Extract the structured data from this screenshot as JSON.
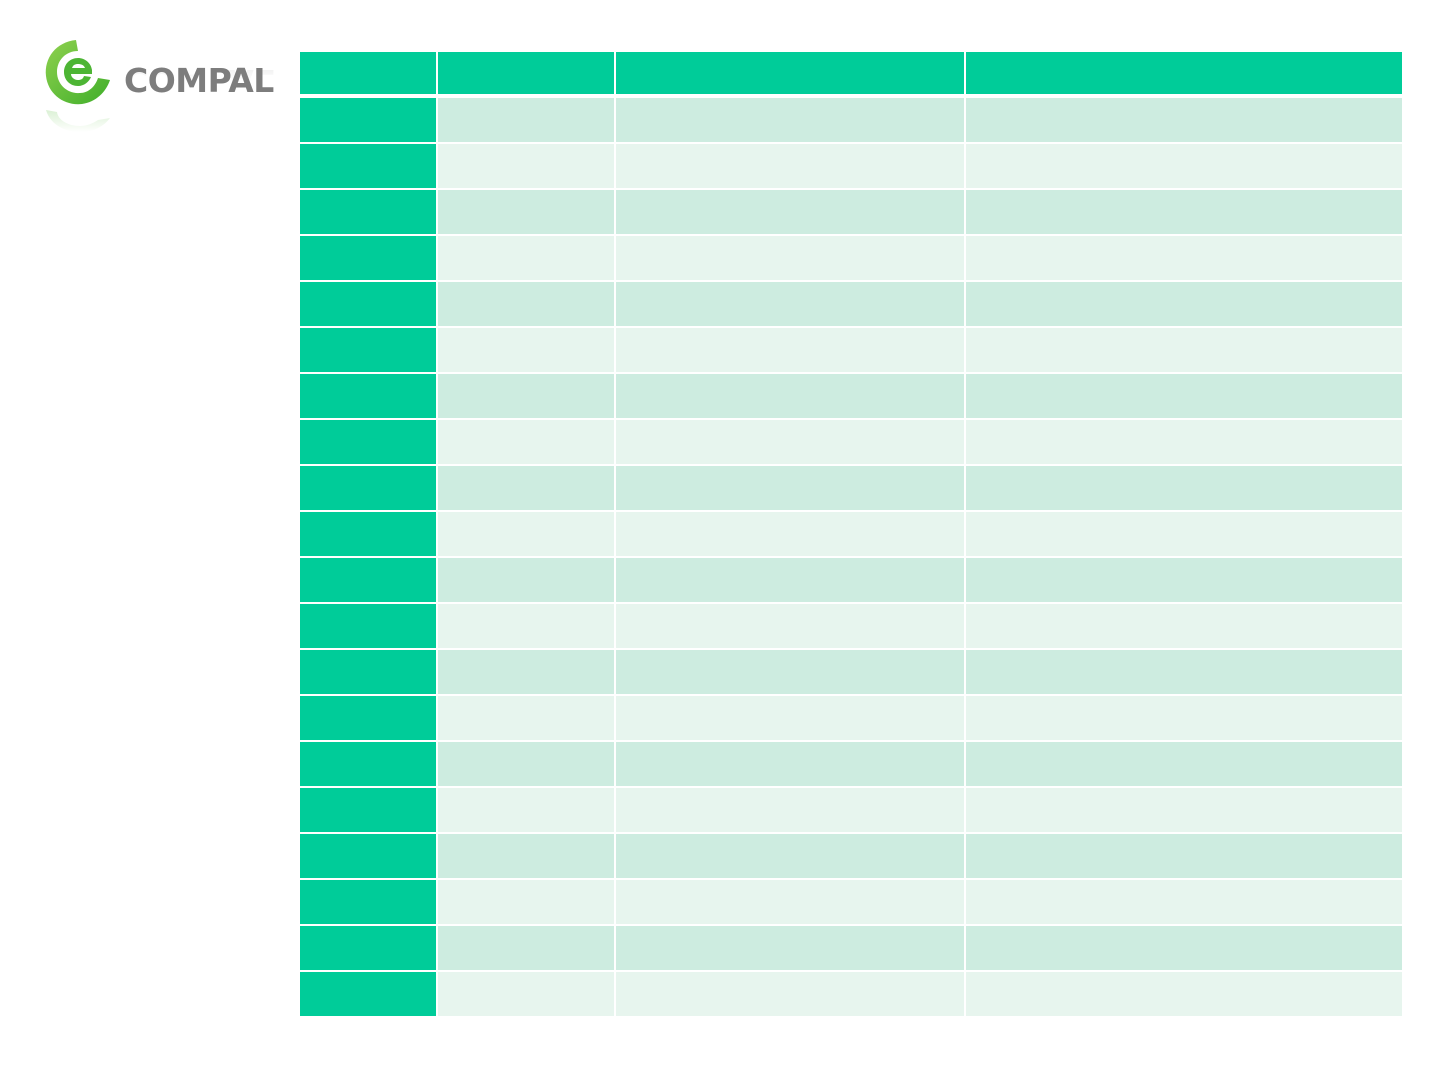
{
  "brand": {
    "name": "COMPAL",
    "logo_icon": "compal-swirl-e-icon",
    "colors": {
      "logo_green": "#5bbf3f",
      "logo_text": "#7d7d7d"
    }
  },
  "table": {
    "colors": {
      "header": "#00cc99",
      "row_odd": "#cdece0",
      "row_even": "#e7f5ee"
    },
    "columns": [
      "",
      "",
      "",
      ""
    ],
    "row_count": 20,
    "rows": [
      [
        "",
        "",
        "",
        ""
      ],
      [
        "",
        "",
        "",
        ""
      ],
      [
        "",
        "",
        "",
        ""
      ],
      [
        "",
        "",
        "",
        ""
      ],
      [
        "",
        "",
        "",
        ""
      ],
      [
        "",
        "",
        "",
        ""
      ],
      [
        "",
        "",
        "",
        ""
      ],
      [
        "",
        "",
        "",
        ""
      ],
      [
        "",
        "",
        "",
        ""
      ],
      [
        "",
        "",
        "",
        ""
      ],
      [
        "",
        "",
        "",
        ""
      ],
      [
        "",
        "",
        "",
        ""
      ],
      [
        "",
        "",
        "",
        ""
      ],
      [
        "",
        "",
        "",
        ""
      ],
      [
        "",
        "",
        "",
        ""
      ],
      [
        "",
        "",
        "",
        ""
      ],
      [
        "",
        "",
        "",
        ""
      ],
      [
        "",
        "",
        "",
        ""
      ],
      [
        "",
        "",
        "",
        ""
      ],
      [
        "",
        "",
        "",
        ""
      ]
    ]
  }
}
